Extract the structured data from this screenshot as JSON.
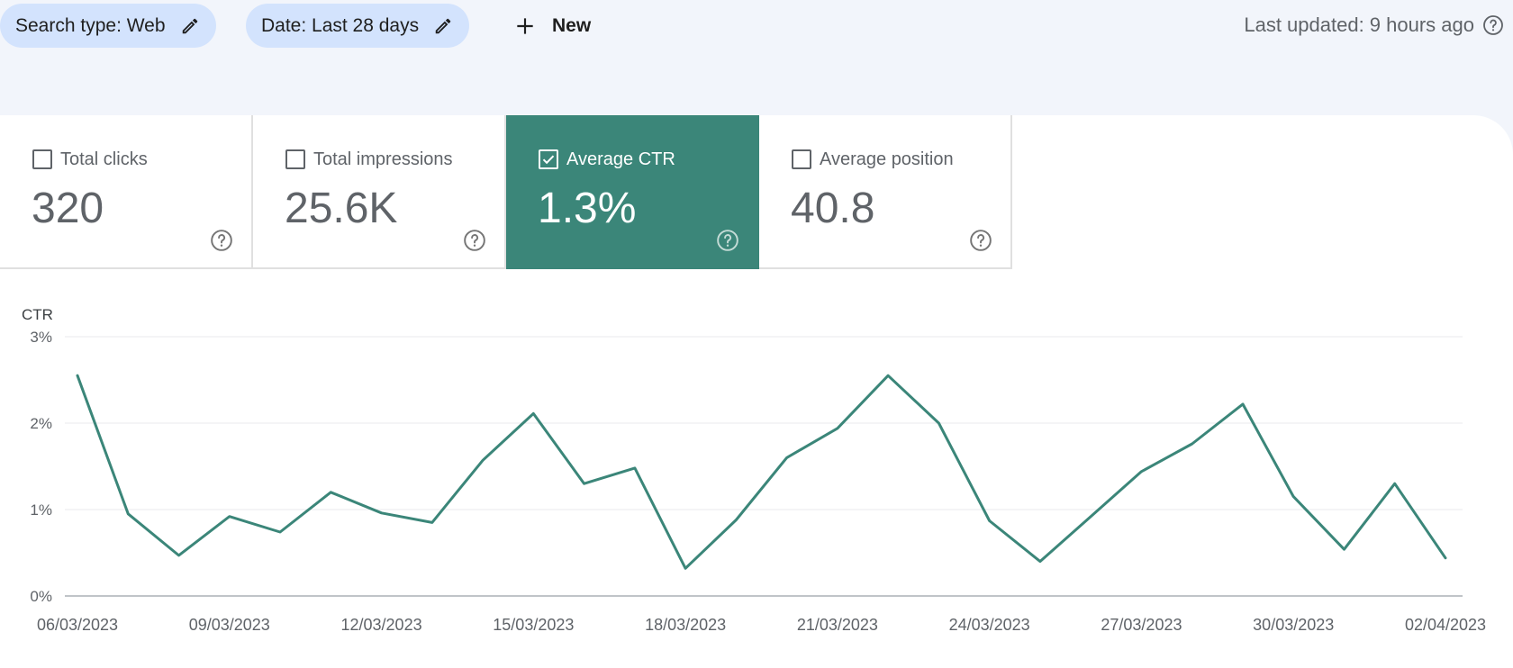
{
  "toolbar": {
    "search_type": "Search type: Web",
    "date": "Date: Last 28 days",
    "new_label": "New",
    "last_updated": "Last updated: 9 hours ago"
  },
  "metrics": [
    {
      "label": "Total clicks",
      "value": "320",
      "checked": false
    },
    {
      "label": "Total impressions",
      "value": "25.6K",
      "checked": false
    },
    {
      "label": "Average CTR",
      "value": "1.3%",
      "checked": true
    },
    {
      "label": "Average position",
      "value": "40.8",
      "checked": false
    }
  ],
  "colors": {
    "accent": "#3b8679",
    "chip": "#d3e3fd",
    "background": "#f2f5fb"
  },
  "chart_data": {
    "type": "line",
    "ylabel": "CTR",
    "ylim": [
      0,
      3
    ],
    "y_ticks": [
      "0%",
      "1%",
      "2%",
      "3%"
    ],
    "x_tick_labels": [
      "06/03/2023",
      "09/03/2023",
      "12/03/2023",
      "15/03/2023",
      "18/03/2023",
      "21/03/2023",
      "24/03/2023",
      "27/03/2023",
      "30/03/2023",
      "02/04/2023"
    ],
    "grid": true,
    "color": "#3b8679",
    "x": [
      "06/03/2023",
      "07/03/2023",
      "08/03/2023",
      "09/03/2023",
      "10/03/2023",
      "11/03/2023",
      "12/03/2023",
      "13/03/2023",
      "14/03/2023",
      "15/03/2023",
      "16/03/2023",
      "17/03/2023",
      "18/03/2023",
      "19/03/2023",
      "20/03/2023",
      "21/03/2023",
      "22/03/2023",
      "23/03/2023",
      "24/03/2023",
      "25/03/2023",
      "26/03/2023",
      "27/03/2023",
      "28/03/2023",
      "29/03/2023",
      "30/03/2023",
      "31/03/2023",
      "01/04/2023",
      "02/04/2023"
    ],
    "values": [
      2.55,
      0.95,
      0.47,
      0.92,
      0.74,
      1.2,
      0.96,
      0.85,
      1.57,
      2.11,
      1.3,
      1.48,
      0.32,
      0.88,
      1.6,
      1.94,
      2.55,
      2.0,
      0.87,
      0.4,
      0.92,
      1.44,
      1.76,
      2.22,
      1.15,
      0.54,
      1.3,
      0.44
    ]
  }
}
